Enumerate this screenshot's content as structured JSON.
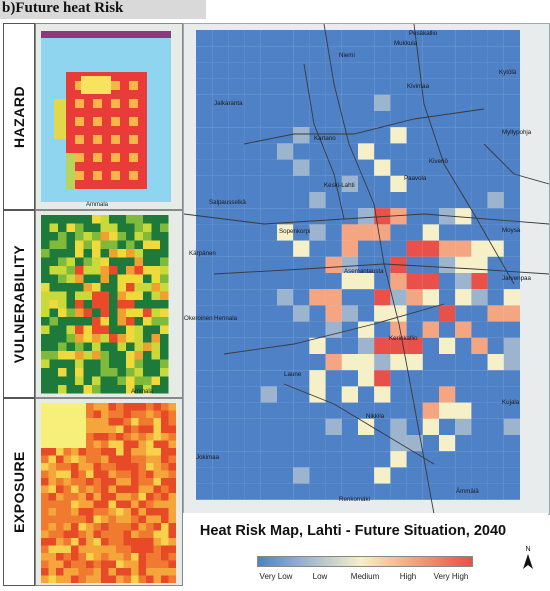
{
  "title": "b)Future heat Risk",
  "rows": [
    {
      "label": "HAZARD",
      "thumb": "hazard-thumbnail"
    },
    {
      "label": "VULNERABILITY",
      "thumb": "vulnerability-thumbnail"
    },
    {
      "label": "EXPOSURE",
      "thumb": "exposure-thumbnail"
    }
  ],
  "map": {
    "title": "Heat Risk Map, Lahti - Future Situation, 2040",
    "places": [
      "Pesäkallio",
      "Mukkula",
      "Niemi",
      "Kytölä",
      "Kivimaa",
      "Jalkaranta",
      "Myllypohja",
      "Kartano",
      "Kiveriö",
      "Salpausselkä",
      "Keski-Lahti",
      "Paavola",
      "Sopenkorpi",
      "Moysa",
      "Kärpänen",
      "Asemantausta",
      "Jarvenpaa",
      "Okeroinen",
      "Hennala",
      "Kerinkallio",
      "Laune",
      "Kujala",
      "Nikkila",
      "Jokimaa",
      "Ämmälä",
      "Renkomäki"
    ],
    "thumb_places": {
      "hazard_bottom": "Ammala",
      "vuln_bottom": "Ammala"
    }
  },
  "legend": {
    "classes": [
      "Very Low",
      "Low",
      "Medium",
      "High",
      "Very High"
    ],
    "colors": [
      "#4f81c7",
      "#9db4cf",
      "#f5f0c8",
      "#f4a582",
      "#e8504a"
    ]
  },
  "north_label": "N"
}
